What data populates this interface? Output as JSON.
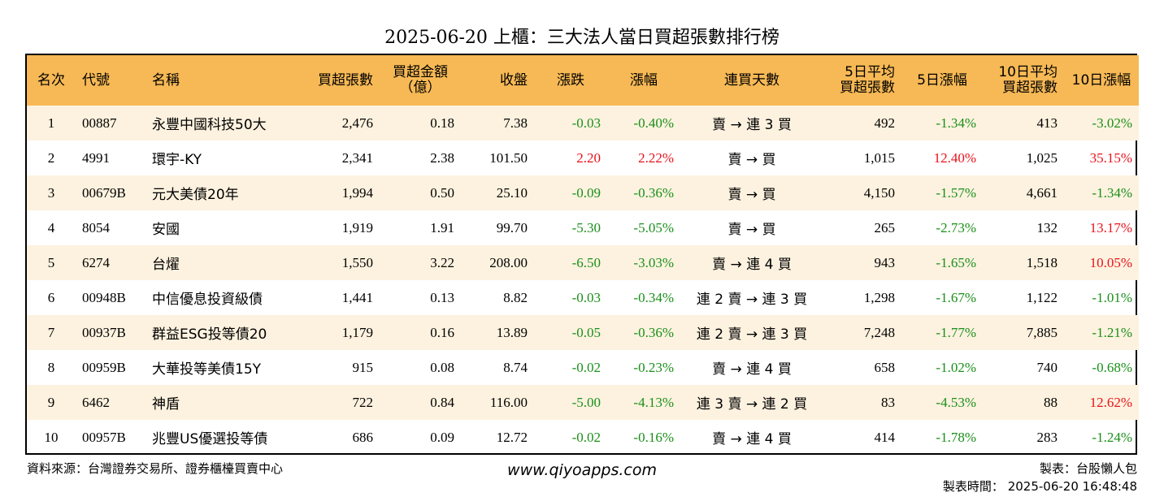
{
  "title": "2025-06-20 上櫃：三大法人當日買超張數排行榜",
  "headers": [
    "名次",
    "代號",
    "名稱",
    "買超張數",
    "買超金額\n（億）",
    "收盤",
    "漲跌",
    "漲幅",
    "連買天數",
    "5日平均\n買超張數",
    "5日漲幅",
    "10日平均\n買超張數",
    "10日漲幅"
  ],
  "rows": [
    [
      "1",
      "00887",
      "永豐中國科技50大",
      "2,476",
      "0.18",
      "7.38",
      "-0.03",
      "-0.40%",
      "賣 → 連 3 買",
      "492",
      "-1.34%",
      "413",
      "-3.02%"
    ],
    [
      "2",
      "4991",
      "環宇-KY",
      "2,341",
      "2.38",
      "101.50",
      "2.20",
      "2.22%",
      "賣 → 買",
      "1,015",
      "12.40%",
      "1,025",
      "35.15%"
    ],
    [
      "3",
      "00679B",
      "元大美債20年",
      "1,994",
      "0.50",
      "25.10",
      "-0.09",
      "-0.36%",
      "賣 → 買",
      "4,150",
      "-1.57%",
      "4,661",
      "-1.34%"
    ],
    [
      "4",
      "8054",
      "安國",
      "1,919",
      "1.91",
      "99.70",
      "-5.30",
      "-5.05%",
      "賣 → 買",
      "265",
      "-2.73%",
      "132",
      "13.17%"
    ],
    [
      "5",
      "6274",
      "台燿",
      "1,550",
      "3.22",
      "208.00",
      "-6.50",
      "-3.03%",
      "賣 → 連 4 買",
      "943",
      "-1.65%",
      "1,518",
      "10.05%"
    ],
    [
      "6",
      "00948B",
      "中信優息投資級債",
      "1,441",
      "0.13",
      "8.82",
      "-0.03",
      "-0.34%",
      "連 2 賣 → 連 3 買",
      "1,298",
      "-1.67%",
      "1,122",
      "-1.01%"
    ],
    [
      "7",
      "00937B",
      "群益ESG投等債20",
      "1,179",
      "0.16",
      "13.89",
      "-0.05",
      "-0.36%",
      "連 2 賣 → 連 3 買",
      "7,248",
      "-1.77%",
      "7,885",
      "-1.21%"
    ],
    [
      "8",
      "00959B",
      "大華投等美債15Y",
      "915",
      "0.08",
      "8.74",
      "-0.02",
      "-0.23%",
      "賣 → 連 4 買",
      "658",
      "-1.02%",
      "740",
      "-0.68%"
    ],
    [
      "9",
      "6462",
      "神盾",
      "722",
      "0.84",
      "116.00",
      "-5.00",
      "-4.13%",
      "連 3 賣 → 連 2 買",
      "83",
      "-4.53%",
      "88",
      "12.62%"
    ],
    [
      "10",
      "00957B",
      "兆豐US優選投等債",
      "686",
      "0.09",
      "12.72",
      "-0.02",
      "-0.16%",
      "賣 → 連 4 買",
      "414",
      "-1.78%",
      "283",
      "-1.24%"
    ]
  ],
  "footer": {
    "source": "資料來源：台灣證券交易所、證券櫃檯買賣中心",
    "website": "www.qiyoapps.com",
    "author": "製表：台股懶人包",
    "created": "製表時間： 2025-06-20 16:48:48"
  },
  "colors": {
    "header_bg": "#f7b955",
    "stripe_bg": "#fdf2df",
    "up": "#e8121b",
    "down": "#1a8f1a"
  }
}
